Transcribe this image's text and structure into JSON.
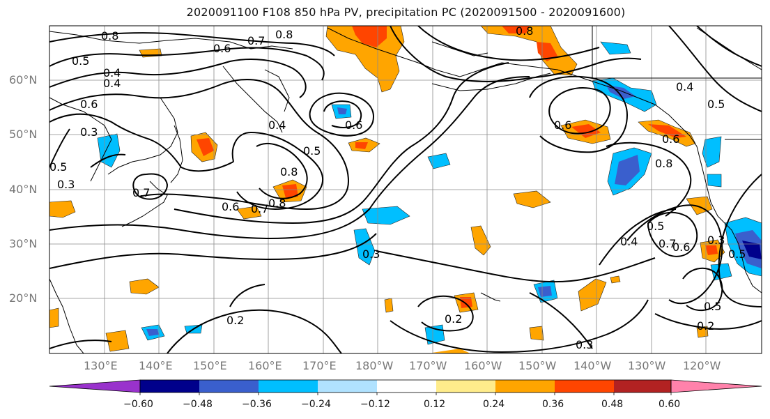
{
  "title": "2020091100 F108 850 hPa PV, precipitation PC (2020091500 - 2020091600)",
  "lat_labels": [
    "60°N",
    "50°N",
    "40°N",
    "30°N",
    "20°N"
  ],
  "lon_labels": [
    "130°E",
    "140°E",
    "150°E",
    "160°E",
    "170°E",
    "180°W",
    "170°W",
    "160°W",
    "150°W",
    "140°W",
    "130°W",
    "120°W"
  ],
  "colorbar": {
    "ticks": [
      "−0.60",
      "−0.48",
      "−0.36",
      "−0.24",
      "−0.12",
      "0.12",
      "0.24",
      "0.36",
      "0.48",
      "0.60"
    ],
    "colors": [
      "#9932CC",
      "#00008B",
      "#3A5FCD",
      "#00BFFF",
      "#B0E2FF",
      "#FFFFFF",
      "#FFEC8B",
      "#FFA500",
      "#FF4500",
      "#B22222",
      "#FF82AB"
    ]
  },
  "contour_labels": [
    "0.8",
    "0.6",
    "0.7",
    "0.8",
    "0.5",
    "0.4",
    "0.6",
    "0.5",
    "0.3",
    "0.4",
    "0.6",
    "0.8",
    "0.5",
    "0.7",
    "0.6",
    "0.7",
    "0.8",
    "0.6",
    "0.4",
    "0.5",
    "0.8",
    "0.6",
    "0.8",
    "0.3",
    "0.2",
    "0.2",
    "0.3",
    "0.4",
    "0.5",
    "0.7",
    "0.6",
    "0.3",
    "0.5",
    "0.2",
    "0.4",
    "0.5",
    "0.3"
  ]
}
